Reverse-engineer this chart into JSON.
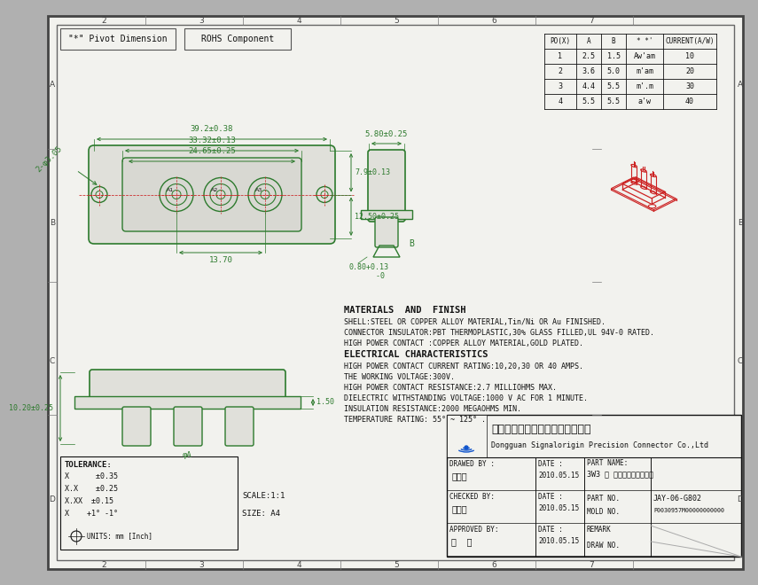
{
  "paper_color": "#f2f2ee",
  "border_color": "#555555",
  "green_color": "#2d7a2d",
  "red_color": "#cc2222",
  "dark_color": "#111111",
  "gray_color": "#888888",
  "title_text1": "\"*\" Pivot Dimension",
  "title_text2": "ROHS Component",
  "table_headers": [
    "PO(X)",
    "A",
    "B",
    "* *'",
    "CURRENT(A/W)"
  ],
  "table_rows": [
    [
      "1",
      "2.5",
      "1.5",
      "Aw'am",
      "10"
    ],
    [
      "2",
      "3.6",
      "5.0",
      "m'am",
      "20"
    ],
    [
      "3",
      "4.4",
      "5.5",
      "m'.m",
      "30"
    ],
    [
      "4",
      "5.5",
      "5.5",
      "a'w",
      "40"
    ]
  ],
  "dim_top_width": "39.2±0.38",
  "dim_mid_width": "33.32±0.13",
  "dim_inner_width": "24.65±0.25",
  "dim_center_holes": "13.70",
  "dim_left": "2-φ3.05",
  "dim_height_right_top": "7.9±0.13",
  "dim_height_right_bot": "12.50±0.25",
  "dim_side_width": "5.80±0.25",
  "dim_bottom_thick": "0.80+0.13\n      -0",
  "dim_B_label": "B",
  "dim_front_height": "10.20±0.25",
  "dim_front_thick": "1.50",
  "dim_front_label": "φA",
  "materials_title": "MATERIALS  AND  FINISH",
  "materials_lines": [
    "SHELL:STEEL OR COPPER ALLOY MATERIAL,Tin/Ni OR Au FINISHED.",
    "CONNECTOR INSULATOR:PBT THERMOPLASTIC,30% GLASS FILLED,UL 94V-0 RATED.",
    "HIGH POWER CONTACT :COPPER ALLOY MATERIAL,GOLD PLATED.",
    "ELECTRICAL CHARACTERISTICS",
    "HIGH POWER CONTACT CURRENT RATING:10,20,30 OR 40 AMPS.",
    "THE WORKING VOLTAGE:300V.",
    "HIGH POWER CONTACT RESISTANCE:2.7 MILLIOHMS MAX.",
    "DIELECTRIC WITHSTANDING VOLTAGE:1000 V AC FOR 1 MINUTE.",
    "INSULATION RESISTANCE:2000 MEGAOHMS MIN.",
    "TEMPERATURE RATING: 55° ~ 125° ."
  ],
  "company_cn": "东莞市迅颖原精密连接器有限公司",
  "company_en": "Dongguan Signalorigin Precision Connector Co.,Ltd",
  "drawn_label": "DRAWED BY :",
  "checked_label": "CHECKED BY:",
  "approved_label": "APPROVED BY:",
  "drawn_by": "杨剑玉",
  "checked_by": "信庆文",
  "approved_by": "刘  起",
  "date1": "2010.05.15",
  "date2": "2010.05.15",
  "date3": "2010.05.15",
  "part_name_label": "PART NAME:",
  "part_name": "3W3 型 电流插接式插座组合",
  "part_no_label": "PART NO.",
  "part_no": "JAY-06-G802",
  "mold_no_label": "MOLD NO.",
  "mold_no": "P0030957M00000000000",
  "remark_label": "REMARK",
  "draw_no_label": "DRAW NO.",
  "tolerance_title": "TOLERANCE:",
  "tolerance_lines": [
    "X      ±0.35",
    "X.X    ±0.25",
    "X.XX  ±0.15",
    "X    +1° -1°"
  ],
  "units_label": "UNITS: mm [Inch]",
  "scale_label": "SCALE:1:1",
  "size_label": "SIZE: A4",
  "date_label": "DATE :"
}
